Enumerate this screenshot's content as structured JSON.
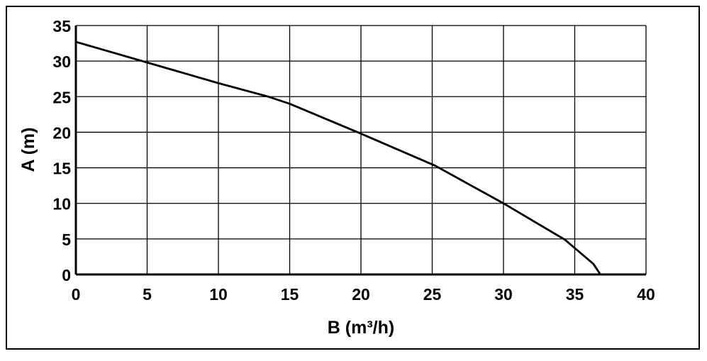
{
  "chart_data": {
    "type": "line",
    "title": "",
    "xlabel": "B (m³/h)",
    "ylabel": "A (m)",
    "xlim": [
      0,
      40
    ],
    "ylim": [
      0,
      35
    ],
    "xticks": [
      "0",
      "5",
      "10",
      "15",
      "20",
      "25",
      "30",
      "35",
      "40"
    ],
    "yticks": [
      "0",
      "5",
      "10",
      "15",
      "20",
      "25",
      "30",
      "35"
    ],
    "grid": true,
    "legend": "none",
    "series": [
      {
        "color": "#000000",
        "x": [
          0,
          5,
          10,
          13.5,
          15,
          20,
          25.2,
          30,
          34.3,
          36.3,
          36.8
        ],
        "y": [
          32.7,
          29.8,
          26.9,
          25.0,
          24.0,
          19.8,
          15.3,
          10.0,
          4.9,
          1.5,
          0
        ]
      }
    ]
  }
}
